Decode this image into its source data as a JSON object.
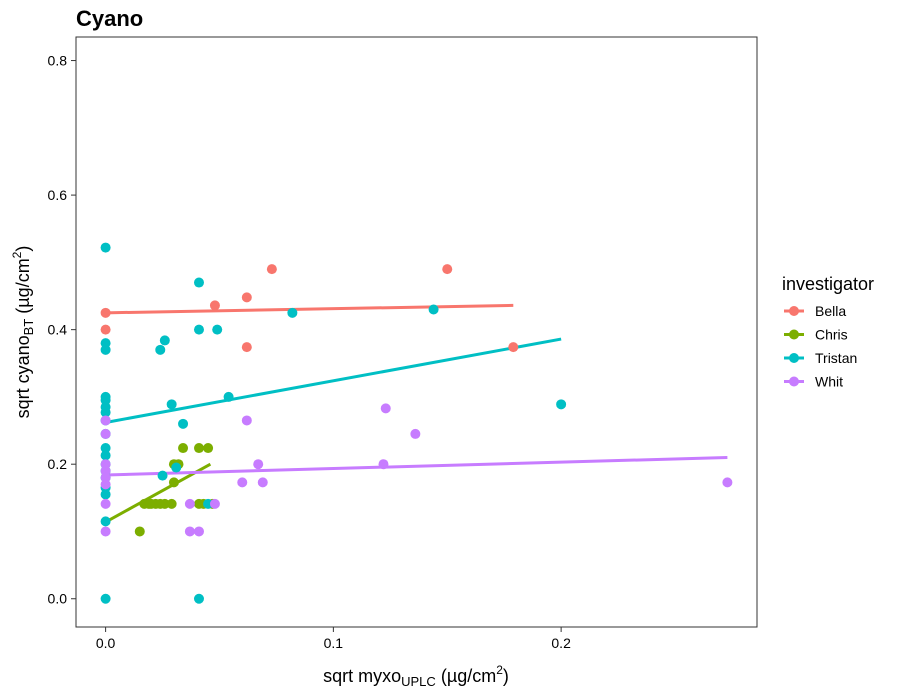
{
  "chart_data": {
    "type": "scatter",
    "title": "Cyano",
    "xlabel": {
      "main": "sqrt myxo",
      "sub": "UPLC",
      "unit_open": "(µg/cm",
      "unit_sup": "2",
      "unit_close": ")"
    },
    "ylabel": {
      "main": "sqrt cyano",
      "sub": "BT",
      "unit_open": "(µg/cm",
      "unit_sup": "2",
      "unit_close": ")"
    },
    "xlim": [
      -0.013,
      0.286
    ],
    "ylim": [
      -0.042,
      0.835
    ],
    "x_ticks": [
      {
        "value": 0.0,
        "label": "0.0"
      },
      {
        "value": 0.1,
        "label": "0.1"
      },
      {
        "value": 0.2,
        "label": "0.2"
      }
    ],
    "y_ticks": [
      {
        "value": 0.0,
        "label": "0.0"
      },
      {
        "value": 0.2,
        "label": "0.2"
      },
      {
        "value": 0.4,
        "label": "0.4"
      },
      {
        "value": 0.6,
        "label": "0.6"
      },
      {
        "value": 0.8,
        "label": "0.8"
      }
    ],
    "grid": false,
    "legend": {
      "title": "investigator",
      "placement": "right"
    },
    "series": [
      {
        "name": "Bella",
        "color": "#F8766D",
        "points": [
          [
            0,
            0.425
          ],
          [
            0,
            0.4
          ],
          [
            0.048,
            0.436
          ],
          [
            0.062,
            0.448
          ],
          [
            0.062,
            0.374
          ],
          [
            0.073,
            0.49
          ],
          [
            0.15,
            0.49
          ],
          [
            0.179,
            0.374
          ]
        ],
        "fit": [
          [
            0,
            0.425
          ],
          [
            0.179,
            0.436
          ]
        ]
      },
      {
        "name": "Chris",
        "color": "#7CAE00",
        "points": [
          [
            0.015,
            0.1
          ],
          [
            0.017,
            0.141
          ],
          [
            0.019,
            0.141
          ],
          [
            0.02,
            0.141
          ],
          [
            0.022,
            0.141
          ],
          [
            0.024,
            0.141
          ],
          [
            0.026,
            0.141
          ],
          [
            0.029,
            0.141
          ],
          [
            0.03,
            0.173
          ],
          [
            0.03,
            0.2
          ],
          [
            0.032,
            0.2
          ],
          [
            0.034,
            0.224
          ],
          [
            0.041,
            0.141
          ],
          [
            0.043,
            0.141
          ],
          [
            0.041,
            0.224
          ],
          [
            0.045,
            0.224
          ],
          [
            0.047,
            0.141
          ]
        ],
        "fit": [
          [
            0,
            0.114
          ],
          [
            0.046,
            0.2
          ]
        ]
      },
      {
        "name": "Tristan",
        "color": "#00BFC4",
        "points": [
          [
            0,
            0.522
          ],
          [
            0,
            0.38
          ],
          [
            0,
            0.37
          ],
          [
            0,
            0.3
          ],
          [
            0,
            0.295
          ],
          [
            0,
            0.285
          ],
          [
            0,
            0.277
          ],
          [
            0,
            0.265
          ],
          [
            0,
            0.245
          ],
          [
            0,
            0.224
          ],
          [
            0,
            0.213
          ],
          [
            0,
            0.2
          ],
          [
            0,
            0.19
          ],
          [
            0,
            0.18
          ],
          [
            0,
            0.165
          ],
          [
            0,
            0.155
          ],
          [
            0,
            0.115
          ],
          [
            0,
            0.0
          ],
          [
            0.024,
            0.37
          ],
          [
            0.026,
            0.384
          ],
          [
            0.025,
            0.183
          ],
          [
            0.029,
            0.289
          ],
          [
            0.031,
            0.195
          ],
          [
            0.034,
            0.26
          ],
          [
            0.041,
            0.47
          ],
          [
            0.041,
            0.4
          ],
          [
            0.041,
            0.0
          ],
          [
            0.045,
            0.141
          ],
          [
            0.049,
            0.4
          ],
          [
            0.054,
            0.3
          ],
          [
            0.082,
            0.425
          ],
          [
            0.144,
            0.43
          ],
          [
            0.2,
            0.289
          ]
        ],
        "fit": [
          [
            0,
            0.262
          ],
          [
            0.2,
            0.386
          ]
        ]
      },
      {
        "name": "Whit",
        "color": "#C77CFF",
        "points": [
          [
            0,
            0.265
          ],
          [
            0,
            0.245
          ],
          [
            0,
            0.2
          ],
          [
            0,
            0.19
          ],
          [
            0,
            0.18
          ],
          [
            0,
            0.17
          ],
          [
            0,
            0.141
          ],
          [
            0,
            0.1
          ],
          [
            0.037,
            0.141
          ],
          [
            0.037,
            0.1
          ],
          [
            0.041,
            0.1
          ],
          [
            0.048,
            0.141
          ],
          [
            0.06,
            0.173
          ],
          [
            0.062,
            0.265
          ],
          [
            0.067,
            0.2
          ],
          [
            0.069,
            0.173
          ],
          [
            0.122,
            0.2
          ],
          [
            0.123,
            0.283
          ],
          [
            0.136,
            0.245
          ],
          [
            0.273,
            0.173
          ]
        ],
        "fit": [
          [
            0,
            0.184
          ],
          [
            0.273,
            0.21
          ]
        ]
      }
    ]
  }
}
